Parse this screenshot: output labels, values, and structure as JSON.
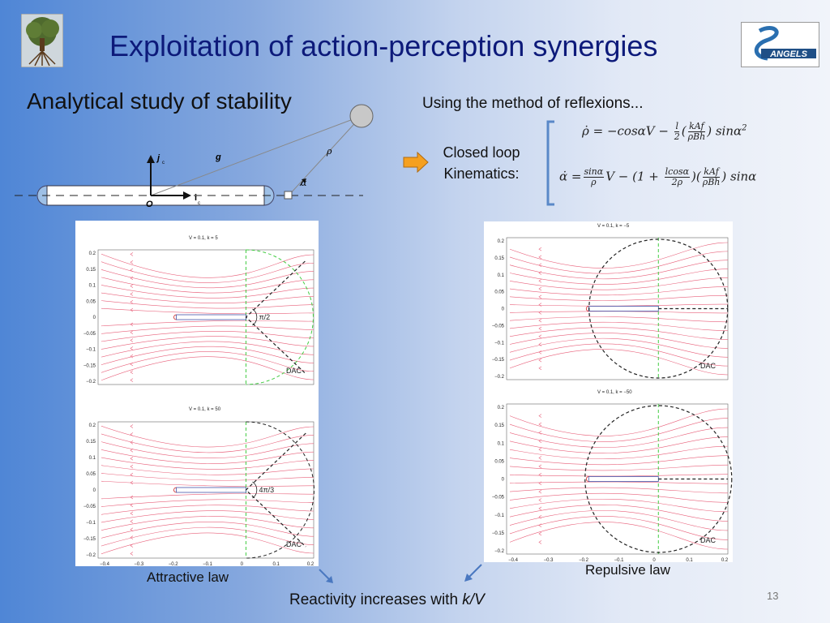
{
  "slide": {
    "title": "Exploitation of action-perception synergies",
    "subtitle": "Analytical study of stability",
    "method_text": "Using the method of reflexions...",
    "closed_loop_label": [
      "Closed loop",
      "Kinematics:"
    ],
    "slide_number": "13",
    "logo_text": "ANGELS"
  },
  "diagram": {
    "labels": {
      "j": "j",
      "j_sub": "c",
      "i": "i",
      "i_sub": "c",
      "origin": "O",
      "g": "g",
      "rho": "ρ",
      "alpha": "α"
    }
  },
  "equations": {
    "eq1": {
      "lhs": "ρ̇",
      "terms": [
        "= −cosαV − ",
        "l",
        "2",
        "kAf",
        "ρBh",
        "sinα",
        "2"
      ]
    },
    "eq2": {
      "lhs": "α̇",
      "terms": [
        "=",
        "sinα",
        "ρ",
        "V − ",
        "1 + ",
        "lcosα",
        "2ρ",
        "kAf",
        "ρBh",
        "sinα"
      ]
    }
  },
  "plots": [
    {
      "title": "V = 0.1, k = 5",
      "annotation": "π/2",
      "dac": "DAC"
    },
    {
      "title": "V = 0.1, k = 50",
      "annotation": "4π/3",
      "dac": "DAC"
    },
    {
      "title": "V = 0.1, k = −5",
      "dac": "DAC"
    },
    {
      "title": "V = 0.1, k = −50",
      "dac": "DAC"
    }
  ],
  "ticks": {
    "y": [
      "0.2",
      "0.15",
      "0.1",
      "0.05",
      "0",
      "−0.05",
      "−0.1",
      "−0.15",
      "−0.2"
    ],
    "x": [
      "−0.4",
      "−0.3",
      "−0.2",
      "−0.1",
      "0",
      "0.1",
      "0.2"
    ]
  },
  "captions": {
    "attractive": "Attractive law",
    "repulsive": "Repulsive law",
    "reactivity_prefix": "Reactivity increases with ",
    "reactivity_var": "k/V"
  },
  "colors": {
    "title": "#0d1a7a",
    "stream": "#e8607a",
    "dac_dashed": "#222222",
    "green_dashed": "#44cc44",
    "arrow_orange": "#f5a020"
  }
}
